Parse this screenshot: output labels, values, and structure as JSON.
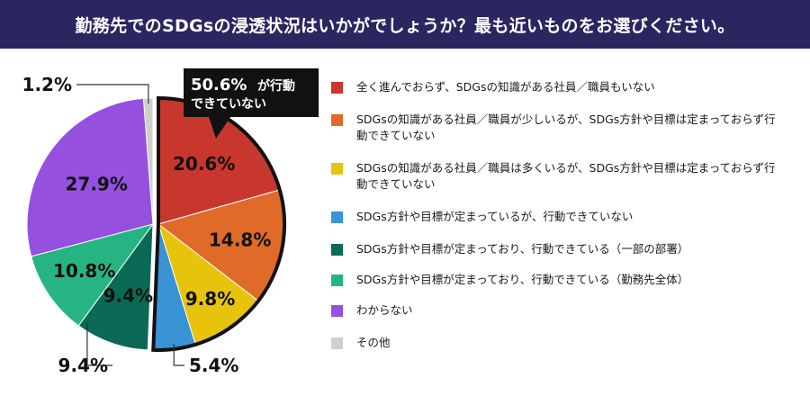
{
  "header": {
    "title": "勤務先でのSDGsの浸透状況はいかがでしょうか？最も近いものをお選びください。"
  },
  "chart_data": {
    "type": "pie",
    "title": "勤務先でのSDGsの浸透状況はいかがでしょうか？最も近いものをお選びください。",
    "unit": "%",
    "start": "12 o'clock, clockwise",
    "slices": [
      {
        "label": "全く進んでおらず、SDGsの知識がある社員／職員もいない",
        "value": 20.6,
        "display": "20.6%",
        "color": "#c8372d"
      },
      {
        "label": "SDGsの知識がある社員／職員が少しいるが、SDGs方針や目標は定まっておらず行動できていない",
        "value": 14.8,
        "display": "14.8%",
        "color": "#e06a28"
      },
      {
        "label": "SDGsの知識がある社員／職員は多くいるが、SDGs方針や目標は定まっておらず行動できていない",
        "value": 9.8,
        "display": "9.8%",
        "color": "#e8c30c"
      },
      {
        "label": "SDGs方針や目標が定まっているが、行動できていない",
        "value": 5.4,
        "display": "5.4%",
        "color": "#3a93d5"
      },
      {
        "label": "SDGs方針や目標が定まっており、行動できている（一部の部署）",
        "value": 9.4,
        "display": "9.4%",
        "color": "#0b6a56"
      },
      {
        "label": "SDGs方針や目標が定まっており、行動できている（勤務先全体）",
        "value": 10.8,
        "display": "10.8%",
        "color": "#27b483"
      },
      {
        "label": "わからない",
        "value": 27.9,
        "display": "27.9%",
        "color": "#9550e0"
      },
      {
        "label": "その他",
        "value": 1.2,
        "display": "1.2%",
        "color": "#cfcfcf"
      }
    ],
    "highlight": {
      "slices": [
        0,
        1,
        2,
        3
      ],
      "value": 50.6,
      "value_text": "50.6%",
      "caption_line1": "が行動",
      "caption_line2": "できていない"
    }
  }
}
